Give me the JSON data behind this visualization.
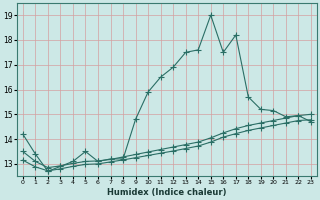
{
  "title": "",
  "xlabel": "Humidex (Indice chaleur)",
  "ylabel": "",
  "bg_color": "#cce8e6",
  "grid_color": "#d4a0a0",
  "line_color": "#2a6e65",
  "xlim": [
    -0.5,
    23.5
  ],
  "ylim": [
    12.5,
    19.5
  ],
  "yticks": [
    13,
    14,
    15,
    16,
    17,
    18,
    19
  ],
  "xtick_labels": [
    "0",
    "1",
    "2",
    "3",
    "4",
    "5",
    "6",
    "7",
    "8",
    "9",
    "10",
    "11",
    "12",
    "13",
    "14",
    "15",
    "16",
    "17",
    "18",
    "19",
    "20",
    "21",
    "22",
    "23"
  ],
  "series1_x": [
    0,
    1,
    2,
    3,
    4,
    5,
    6,
    7,
    8,
    9,
    10,
    11,
    12,
    13,
    14,
    15,
    16,
    17,
    18,
    19,
    20,
    21,
    22,
    23
  ],
  "series1_y": [
    14.2,
    13.4,
    12.7,
    12.9,
    13.1,
    13.5,
    13.1,
    13.2,
    13.2,
    14.8,
    15.9,
    16.5,
    16.9,
    17.5,
    17.6,
    19.0,
    17.5,
    18.2,
    15.7,
    15.2,
    15.15,
    14.9,
    14.95,
    14.7
  ],
  "series2_x": [
    0,
    1,
    2,
    3,
    4,
    5,
    6,
    7,
    8,
    9,
    10,
    11,
    12,
    13,
    14,
    15,
    16,
    17,
    18,
    19,
    20,
    21,
    22,
    23
  ],
  "series2_y": [
    13.5,
    13.1,
    12.85,
    12.92,
    13.02,
    13.1,
    13.12,
    13.18,
    13.28,
    13.38,
    13.48,
    13.58,
    13.68,
    13.78,
    13.88,
    14.05,
    14.25,
    14.42,
    14.55,
    14.65,
    14.75,
    14.85,
    14.95,
    15.0
  ],
  "series3_x": [
    0,
    1,
    2,
    3,
    4,
    5,
    6,
    7,
    8,
    9,
    10,
    11,
    12,
    13,
    14,
    15,
    16,
    17,
    18,
    19,
    20,
    21,
    22,
    23
  ],
  "series3_y": [
    13.15,
    12.88,
    12.72,
    12.8,
    12.9,
    12.98,
    13.0,
    13.08,
    13.16,
    13.25,
    13.34,
    13.43,
    13.52,
    13.62,
    13.72,
    13.88,
    14.08,
    14.22,
    14.35,
    14.45,
    14.55,
    14.65,
    14.75,
    14.78
  ]
}
